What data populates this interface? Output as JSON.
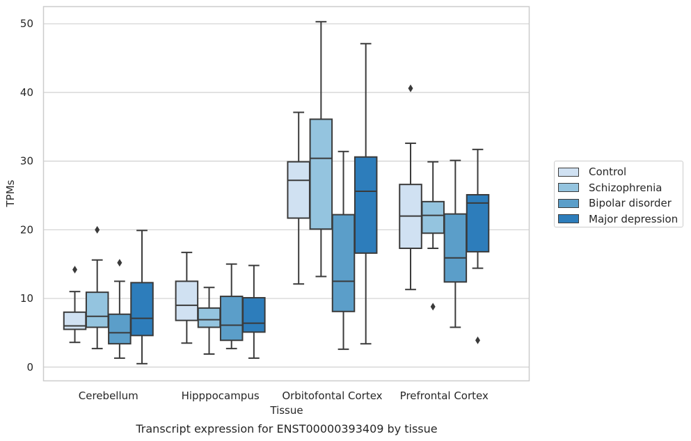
{
  "chart_data": {
    "type": "box",
    "title": "Transcript expression for ENST00000393409 by tissue",
    "xlabel": "Tissue",
    "ylabel": "TPMs",
    "ylim": [
      -2,
      52.5
    ],
    "yticks": [
      0,
      10,
      20,
      30,
      40,
      50
    ],
    "grid": "horizontal",
    "legend_position": "right",
    "categories": [
      "Cerebellum",
      "Hipppocampus",
      "Orbitofontal Cortex",
      "Prefrontal Cortex"
    ],
    "series": [
      {
        "name": "Control",
        "color": "#d0e1f2",
        "boxes": [
          {
            "whisker_low": 3.6,
            "q1": 5.5,
            "median": 6.0,
            "q3": 8.0,
            "whisker_high": 11.0,
            "outliers": [
              14.2
            ]
          },
          {
            "whisker_low": 3.5,
            "q1": 6.8,
            "median": 9.0,
            "q3": 12.5,
            "whisker_high": 16.7,
            "outliers": []
          },
          {
            "whisker_low": 12.1,
            "q1": 21.7,
            "median": 27.2,
            "q3": 29.9,
            "whisker_high": 37.1,
            "outliers": []
          },
          {
            "whisker_low": 11.3,
            "q1": 17.3,
            "median": 22.0,
            "q3": 26.6,
            "whisker_high": 32.6,
            "outliers": [
              40.6
            ]
          }
        ]
      },
      {
        "name": "Schizophrenia",
        "color": "#94c4df",
        "boxes": [
          {
            "whisker_low": 2.7,
            "q1": 5.8,
            "median": 7.4,
            "q3": 10.9,
            "whisker_high": 15.6,
            "outliers": [
              20.0
            ]
          },
          {
            "whisker_low": 1.9,
            "q1": 5.8,
            "median": 6.9,
            "q3": 8.6,
            "whisker_high": 11.6,
            "outliers": []
          },
          {
            "whisker_low": 13.2,
            "q1": 20.1,
            "median": 30.4,
            "q3": 36.1,
            "whisker_high": 50.3,
            "outliers": []
          },
          {
            "whisker_low": 17.3,
            "q1": 19.5,
            "median": 22.1,
            "q3": 24.1,
            "whisker_high": 29.9,
            "outliers": [
              8.8
            ]
          }
        ]
      },
      {
        "name": "Bipolar disorder",
        "color": "#5b9ec9",
        "boxes": [
          {
            "whisker_low": 1.3,
            "q1": 3.4,
            "median": 5.0,
            "q3": 7.7,
            "whisker_high": 12.5,
            "outliers": [
              15.2
            ]
          },
          {
            "whisker_low": 2.7,
            "q1": 3.9,
            "median": 6.1,
            "q3": 10.3,
            "whisker_high": 15.0,
            "outliers": []
          },
          {
            "whisker_low": 2.6,
            "q1": 8.1,
            "median": 12.5,
            "q3": 22.2,
            "whisker_high": 31.4,
            "outliers": []
          },
          {
            "whisker_low": 5.8,
            "q1": 12.4,
            "median": 15.9,
            "q3": 22.3,
            "whisker_high": 30.1,
            "outliers": []
          }
        ]
      },
      {
        "name": "Major depression",
        "color": "#2d7dbb",
        "boxes": [
          {
            "whisker_low": 0.5,
            "q1": 4.6,
            "median": 7.1,
            "q3": 12.3,
            "whisker_high": 19.9,
            "outliers": []
          },
          {
            "whisker_low": 1.3,
            "q1": 5.1,
            "median": 6.4,
            "q3": 10.1,
            "whisker_high": 14.8,
            "outliers": []
          },
          {
            "whisker_low": 3.4,
            "q1": 16.6,
            "median": 25.6,
            "q3": 30.6,
            "whisker_high": 47.1,
            "outliers": []
          },
          {
            "whisker_low": 14.4,
            "q1": 16.8,
            "median": 23.9,
            "q3": 25.1,
            "whisker_high": 31.7,
            "outliers": [
              3.9
            ]
          }
        ]
      }
    ]
  }
}
